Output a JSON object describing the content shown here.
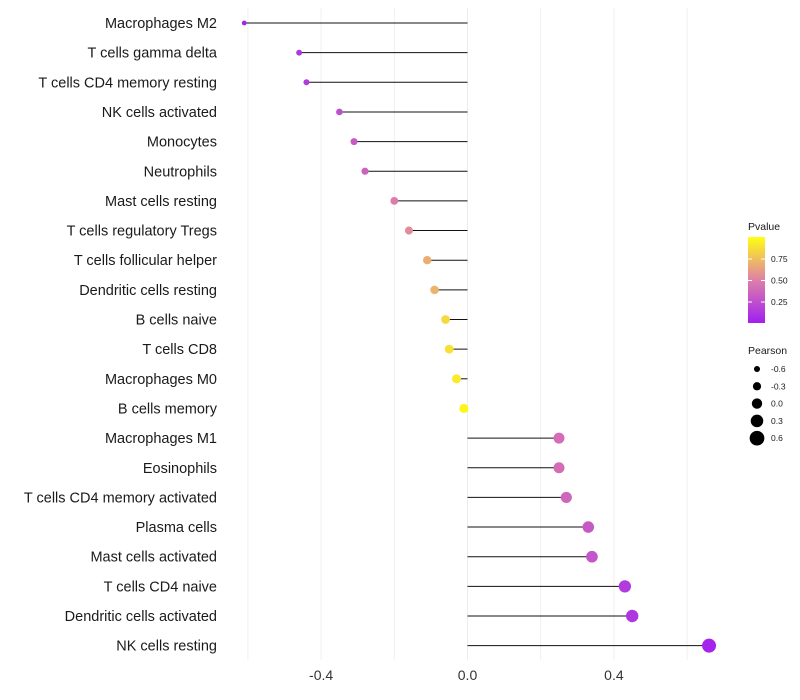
{
  "chart_data": {
    "type": "lollipop",
    "title": "",
    "xlabel": "",
    "ylabel": "",
    "xlim": [
      -0.6,
      0.6
    ],
    "x_ticks": [
      -0.4,
      0.0,
      0.4
    ],
    "x_tick_labels": [
      "-0.4",
      "0.0",
      "0.4"
    ],
    "baseline": 0.0,
    "categories": [
      "Macrophages M2",
      "T cells gamma delta",
      "T cells CD4 memory resting",
      "NK cells activated",
      "Monocytes",
      "Neutrophils",
      "Mast cells resting",
      "T cells regulatory  Tregs",
      "T cells follicular helper",
      "Dendritic cells resting",
      "B cells naive",
      "T cells CD8",
      "Macrophages M0",
      "B cells memory",
      "Macrophages M1",
      "Eosinophils",
      "T cells CD4 memory activated",
      "Plasma cells",
      "Mast cells activated",
      "T cells CD4 naive",
      "Dendritic cells activated",
      "NK cells resting"
    ],
    "pearson": [
      -0.61,
      -0.46,
      -0.44,
      -0.35,
      -0.31,
      -0.28,
      -0.2,
      -0.16,
      -0.11,
      -0.09,
      -0.06,
      -0.05,
      -0.03,
      -0.01,
      0.25,
      0.25,
      0.27,
      0.33,
      0.34,
      0.43,
      0.45,
      0.66
    ],
    "pvalue": [
      0.02,
      0.12,
      0.14,
      0.25,
      0.3,
      0.35,
      0.48,
      0.55,
      0.68,
      0.7,
      0.85,
      0.88,
      0.92,
      0.97,
      0.4,
      0.4,
      0.37,
      0.3,
      0.28,
      0.14,
      0.12,
      0.03
    ],
    "color_scale": {
      "low": "#a020f0",
      "mid": "#de80a8",
      "high": "#ffff10"
    },
    "legend_pvalue": {
      "title": "Pvalue",
      "position": "right",
      "labels": [
        "0.75",
        "0.50",
        "0.25"
      ],
      "values": [
        0.75,
        0.5,
        0.25
      ]
    },
    "legend_pearson": {
      "title": "Pearson",
      "position": "right",
      "labels": [
        "-0.6",
        "-0.3",
        "0.0",
        "0.3",
        "0.6"
      ],
      "values": [
        -0.6,
        -0.3,
        0.0,
        0.3,
        0.6
      ]
    }
  }
}
